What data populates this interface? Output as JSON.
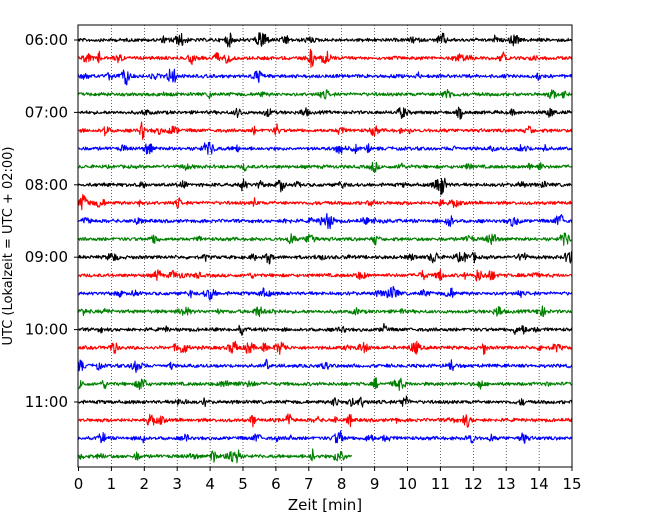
{
  "chart_data": {
    "type": "line",
    "title": "",
    "xlabel": "Zeit  [min]",
    "ylabel": "UTC (Lokalzeit = UTC + 02:00)",
    "xlim": [
      0,
      15
    ],
    "x_ticks": [
      "0",
      "1",
      "2",
      "3",
      "4",
      "5",
      "6",
      "7",
      "8",
      "9",
      "10",
      "11",
      "12",
      "13",
      "14",
      "15"
    ],
    "y_ticks": [
      "06:00",
      "07:00",
      "08:00",
      "09:00",
      "10:00",
      "11:00"
    ],
    "grid": "vertical dotted lines at each minute",
    "trace_interval_minutes": 15,
    "series_colors": [
      "#000000",
      "#ff0000",
      "#0000ff",
      "#008000"
    ],
    "traces": [
      {
        "start": "06:00",
        "color": "#000000",
        "duration_min": 15
      },
      {
        "start": "06:15",
        "color": "#ff0000",
        "duration_min": 15
      },
      {
        "start": "06:30",
        "color": "#0000ff",
        "duration_min": 15
      },
      {
        "start": "06:45",
        "color": "#008000",
        "duration_min": 15
      },
      {
        "start": "07:00",
        "color": "#000000",
        "duration_min": 15
      },
      {
        "start": "07:15",
        "color": "#ff0000",
        "duration_min": 15
      },
      {
        "start": "07:30",
        "color": "#0000ff",
        "duration_min": 15
      },
      {
        "start": "07:45",
        "color": "#008000",
        "duration_min": 15
      },
      {
        "start": "08:00",
        "color": "#000000",
        "duration_min": 15
      },
      {
        "start": "08:15",
        "color": "#ff0000",
        "duration_min": 15
      },
      {
        "start": "08:30",
        "color": "#0000ff",
        "duration_min": 15
      },
      {
        "start": "08:45",
        "color": "#008000",
        "duration_min": 15
      },
      {
        "start": "09:00",
        "color": "#000000",
        "duration_min": 15
      },
      {
        "start": "09:15",
        "color": "#ff0000",
        "duration_min": 15
      },
      {
        "start": "09:30",
        "color": "#0000ff",
        "duration_min": 15
      },
      {
        "start": "09:45",
        "color": "#008000",
        "duration_min": 15
      },
      {
        "start": "10:00",
        "color": "#000000",
        "duration_min": 15
      },
      {
        "start": "10:15",
        "color": "#ff0000",
        "duration_min": 15
      },
      {
        "start": "10:30",
        "color": "#0000ff",
        "duration_min": 15
      },
      {
        "start": "10:45",
        "color": "#008000",
        "duration_min": 15
      },
      {
        "start": "11:00",
        "color": "#000000",
        "duration_min": 15
      },
      {
        "start": "11:15",
        "color": "#ff0000",
        "duration_min": 15
      },
      {
        "start": "11:30",
        "color": "#0000ff",
        "duration_min": 15
      },
      {
        "start": "11:45",
        "color": "#008000",
        "duration_min": 8.3
      }
    ]
  }
}
